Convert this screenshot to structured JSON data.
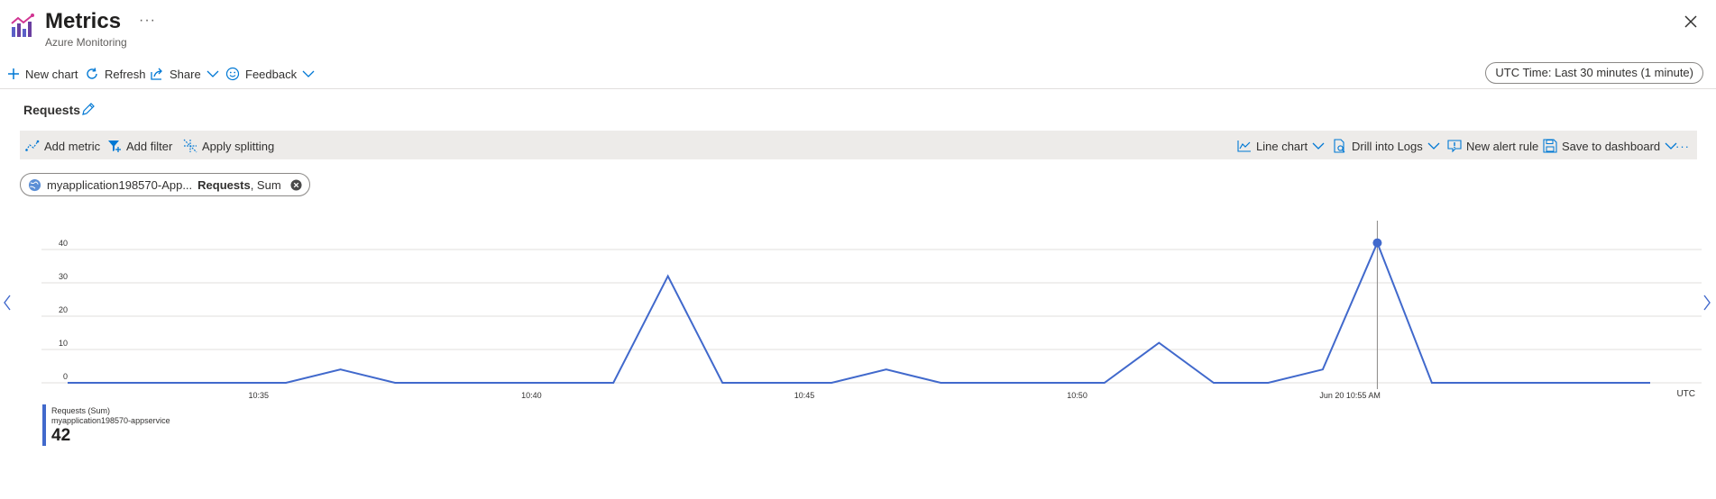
{
  "header": {
    "title": "Metrics",
    "subtitle": "Azure Monitoring",
    "ellipsis": "···",
    "icons": {
      "app": "metrics-chart-icon",
      "close": "close-icon"
    }
  },
  "commands": {
    "new_chart": "New chart",
    "refresh": "Refresh",
    "share": "Share",
    "feedback": "Feedback",
    "time_range": "UTC Time: Last 30 minutes (1 minute)"
  },
  "chart_title": "Requests",
  "toolbar": {
    "add_metric": "Add metric",
    "add_filter": "Add filter",
    "apply_splitting": "Apply splitting",
    "line_chart": "Line chart",
    "drill_logs": "Drill into Logs",
    "new_alert": "New alert rule",
    "save_dashboard": "Save to dashboard",
    "more": "···"
  },
  "metric_pill": {
    "resource": "myapplication198570-App...",
    "metric": "Requests",
    "aggregation": ", Sum"
  },
  "legend": {
    "metric": "Requests (Sum)",
    "resource": "myapplication198570-appservice",
    "value": "42"
  },
  "colors": {
    "series": "#4169cc",
    "accent": "#0078d4"
  },
  "chart_data": {
    "type": "line",
    "xlabel": "",
    "ylabel": "",
    "ylim": [
      0,
      40
    ],
    "y_ticks": [
      "40",
      "30",
      "20",
      "10",
      "0"
    ],
    "x_tick_labels": [
      "10:35",
      "10:40",
      "10:45",
      "10:50",
      "Jun 20 10:55 AM"
    ],
    "x_axis_unit": "UTC",
    "highlight_time": "10:55",
    "series": [
      {
        "x": [
          "10:31",
          "10:32",
          "10:33",
          "10:34",
          "10:35",
          "10:36",
          "10:37",
          "10:38",
          "10:39",
          "10:40",
          "10:41",
          "10:42",
          "10:43",
          "10:44",
          "10:45",
          "10:46",
          "10:47",
          "10:48",
          "10:49",
          "10:50",
          "10:51",
          "10:52",
          "10:53",
          "10:54",
          "10:55",
          "10:56",
          "10:57",
          "10:58",
          "10:59",
          "11:00"
        ],
        "y": [
          0,
          0,
          0,
          0,
          0,
          4,
          0,
          0,
          0,
          0,
          0,
          32,
          0,
          0,
          0,
          4,
          0,
          0,
          0,
          0,
          12,
          0,
          0,
          4,
          42,
          0,
          0,
          0,
          0,
          0
        ]
      }
    ]
  }
}
